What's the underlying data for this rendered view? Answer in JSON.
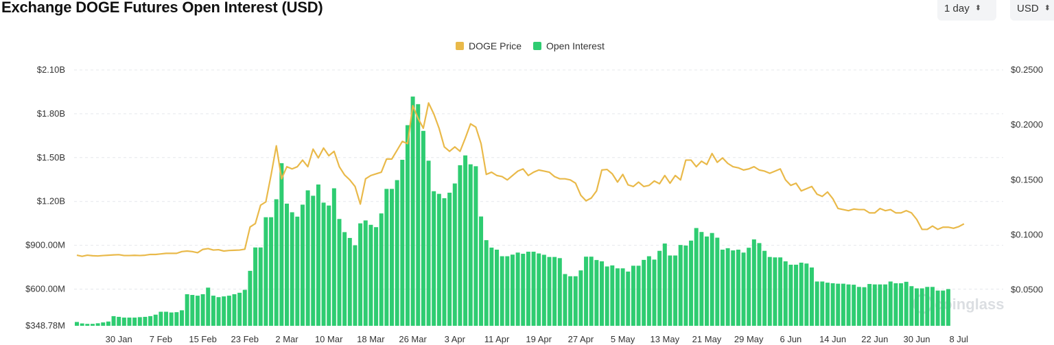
{
  "header": {
    "title": "Exchange DOGE Futures Open Interest (USD)",
    "period": {
      "value": "1 day",
      "icon": "chevron-updown-icon"
    },
    "currency": {
      "value": "USD",
      "icon": "chevron-updown-icon"
    }
  },
  "chart_data": {
    "type": "bar+line",
    "title": "Exchange DOGE Futures Open Interest (USD)",
    "legend": {
      "placement": "top-center",
      "items": [
        "DOGE Price",
        "Open Interest"
      ]
    },
    "colors": {
      "price": "#e9b949",
      "open_interest": "#2ecc71",
      "grid": "#e5e7eb"
    },
    "grid": true,
    "x_tick_labels": [
      "30 Jan",
      "7 Feb",
      "15 Feb",
      "23 Feb",
      "2 Mar",
      "10 Mar",
      "18 Mar",
      "26 Mar",
      "3 Apr",
      "11 Apr",
      "19 Apr",
      "27 Apr",
      "5 May",
      "13 May",
      "21 May",
      "29 May",
      "6 Jun",
      "14 Jun",
      "22 Jun",
      "30 Jun",
      "8 Jul"
    ],
    "y_left": {
      "label": "",
      "ticks": [
        "$348.78M",
        "$600.00M",
        "$900.00M",
        "$1.20B",
        "$1.50B",
        "$1.80B",
        "$2.10B"
      ],
      "tick_values": [
        348.78,
        600,
        900,
        1200,
        1500,
        1800,
        2100
      ],
      "unit": "USD millions",
      "range": [
        348.78,
        2100
      ]
    },
    "y_right": {
      "label": "",
      "ticks": [
        "$0.0500",
        "$0.1000",
        "$0.1500",
        "$0.2000",
        "$0.2500"
      ],
      "tick_values": [
        0.05,
        0.1,
        0.15,
        0.2,
        0.25
      ],
      "range": [
        0.0173,
        0.25
      ]
    },
    "series": [
      {
        "name": "Open Interest",
        "type": "bar",
        "axis": "left",
        "unit": "USD millions",
        "start_date": "22 Jan",
        "step_days": 1,
        "values": [
          375,
          365,
          362,
          362,
          366,
          372,
          378,
          415,
          410,
          405,
          405,
          405,
          408,
          410,
          415,
          425,
          445,
          445,
          440,
          442,
          455,
          565,
          560,
          555,
          565,
          610,
          555,
          545,
          550,
          555,
          565,
          575,
          595,
          725,
          885,
          885,
          1092,
          1092,
          1215,
          1462,
          1185,
          1126,
          1096,
          1178,
          1276,
          1239,
          1316,
          1192,
          1172,
          1290,
          1080,
          990,
          950,
          900,
          1050,
          1070,
          1040,
          1024,
          1118,
          1286,
          1286,
          1346,
          1485,
          1722,
          1918,
          1866,
          1683,
          1479,
          1270,
          1252,
          1222,
          1260,
          1323,
          1448,
          1515,
          1454,
          1441,
          1097,
          935,
          884,
          870,
          825,
          825,
          836,
          850,
          842,
          856,
          856,
          844,
          835,
          820,
          820,
          812,
          703,
          688,
          688,
          728,
          822,
          822,
          799,
          790,
          755,
          762,
          742,
          742,
          720,
          760,
          760,
          800,
          825,
          802,
          862,
          912,
          830,
          830,
          902,
          898,
          932,
          1018,
          991,
          960,
          984,
          952,
          870,
          880,
          865,
          870,
          850,
          883,
          940,
          915,
          862,
          820,
          817,
          817,
          790,
          767,
          767,
          781,
          775,
          748,
          652,
          652,
          644,
          640,
          637,
          637,
          632,
          630,
          615,
          613,
          635,
          632,
          632,
          632,
          652,
          640,
          640,
          650,
          620,
          605,
          605,
          615,
          615,
          590,
          590,
          600
        ]
      },
      {
        "name": "DOGE Price",
        "type": "line",
        "axis": "right",
        "unit": "USD",
        "start_date": "22 Jan",
        "step_days": 1,
        "values": [
          0.0815,
          0.0805,
          0.0815,
          0.081,
          0.0808,
          0.0812,
          0.0815,
          0.0818,
          0.082,
          0.0812,
          0.0812,
          0.0814,
          0.0812,
          0.0815,
          0.0822,
          0.0822,
          0.0827,
          0.0832,
          0.0832,
          0.0832,
          0.0848,
          0.0853,
          0.0848,
          0.0838,
          0.0868,
          0.0875,
          0.0862,
          0.0865,
          0.0853,
          0.0858,
          0.086,
          0.0862,
          0.087,
          0.1072,
          0.1103,
          0.127,
          0.13,
          0.1545,
          0.181,
          0.151,
          0.162,
          0.16,
          0.162,
          0.168,
          0.162,
          0.178,
          0.17,
          0.179,
          0.172,
          0.176,
          0.162,
          0.1545,
          0.15,
          0.144,
          0.128,
          0.151,
          0.154,
          0.1555,
          0.157,
          0.169,
          0.169,
          0.177,
          0.185,
          0.183,
          0.2175,
          0.206,
          0.197,
          0.22,
          0.21,
          0.197,
          0.18,
          0.176,
          0.18,
          0.176,
          0.188,
          0.201,
          0.198,
          0.183,
          0.155,
          0.157,
          0.154,
          0.153,
          0.15,
          0.154,
          0.158,
          0.16,
          0.154,
          0.157,
          0.159,
          0.158,
          0.157,
          0.153,
          0.151,
          0.151,
          0.15,
          0.147,
          0.136,
          0.131,
          0.1335,
          0.14,
          0.159,
          0.1595,
          0.1555,
          0.148,
          0.155,
          0.1455,
          0.144,
          0.148,
          0.144,
          0.145,
          0.149,
          0.1465,
          0.154,
          0.147,
          0.154,
          0.15,
          0.168,
          0.168,
          0.162,
          0.167,
          0.164,
          0.174,
          0.166,
          0.17,
          0.165,
          0.162,
          0.161,
          0.159,
          0.16,
          0.162,
          0.159,
          0.158,
          0.156,
          0.158,
          0.16,
          0.15,
          0.145,
          0.147,
          0.14,
          0.142,
          0.144,
          0.137,
          0.135,
          0.139,
          0.133,
          0.124,
          0.123,
          0.122,
          0.1235,
          0.123,
          0.123,
          0.12,
          0.12,
          0.124,
          0.122,
          0.123,
          0.12,
          0.12,
          0.122,
          0.12,
          0.114,
          0.105,
          0.105,
          0.108,
          0.105,
          0.107,
          0.107,
          0.106,
          0.1075,
          0.11
        ]
      }
    ],
    "watermark": "coinglass"
  }
}
